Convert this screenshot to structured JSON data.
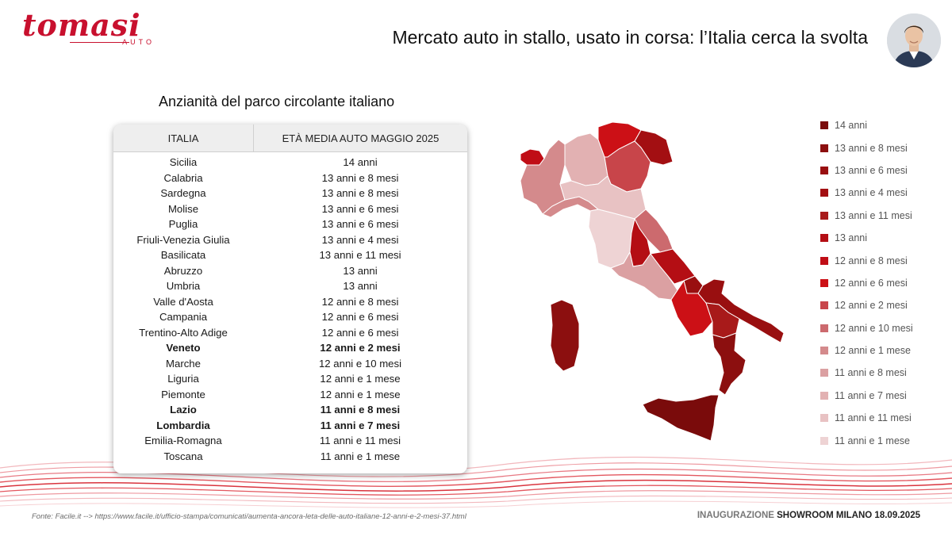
{
  "brand": {
    "name": "tomasi",
    "sub": "AUTO",
    "color": "#c8102e"
  },
  "header": {
    "title": "Mercato auto in stallo, usato in corsa: l’Italia cerca la svolta"
  },
  "section_title": "Anzianità del parco circolante italiano",
  "table": {
    "headers": [
      "ITALIA",
      "ETÀ MEDIA AUTO MAGGIO 2025"
    ],
    "rows": [
      {
        "region": "Sicilia",
        "age": "14 anni",
        "bold": false
      },
      {
        "region": "Calabria",
        "age": "13 anni e 8 mesi",
        "bold": false
      },
      {
        "region": "Sardegna",
        "age": "13 anni e 8 mesi",
        "bold": false
      },
      {
        "region": "Molise",
        "age": "13 anni e 6 mesi",
        "bold": false
      },
      {
        "region": "Puglia",
        "age": "13 anni e 6 mesi",
        "bold": false
      },
      {
        "region": "Friuli-Venezia Giulia",
        "age": "13 anni e 4 mesi",
        "bold": false
      },
      {
        "region": "Basilicata",
        "age": "13 anni e 11 mesi",
        "bold": false
      },
      {
        "region": "Abruzzo",
        "age": "13 anni",
        "bold": false
      },
      {
        "region": "Umbria",
        "age": "13 anni",
        "bold": false
      },
      {
        "region": "Valle d'Aosta",
        "age": "12 anni e 8 mesi",
        "bold": false
      },
      {
        "region": "Campania",
        "age": "12 anni e 6 mesi",
        "bold": false
      },
      {
        "region": "Trentino-Alto Adige",
        "age": "12 anni e 6 mesi",
        "bold": false
      },
      {
        "region": "Veneto",
        "age": "12 anni e 2 mesi",
        "bold": true
      },
      {
        "region": "Marche",
        "age": "12 anni e 10 mesi",
        "bold": false
      },
      {
        "region": "Liguria",
        "age": "12 anni e 1 mese",
        "bold": false
      },
      {
        "region": "Piemonte",
        "age": "12 anni e 1 mese",
        "bold": false
      },
      {
        "region": "Lazio",
        "age": "11 anni e 8 mesi",
        "bold": true
      },
      {
        "region": "Lombardia",
        "age": "11 anni e 7 mesi",
        "bold": true
      },
      {
        "region": "Emilia-Romagna",
        "age": "11 anni e 11 mesi",
        "bold": false
      },
      {
        "region": "Toscana",
        "age": "11 anni e 1 mese",
        "bold": false
      }
    ]
  },
  "legend": [
    {
      "label": "14 anni",
      "color": "#7a0b0b"
    },
    {
      "label": "13 anni e 8 mesi",
      "color": "#8c0f0f"
    },
    {
      "label": "13 anni e 6 mesi",
      "color": "#990f10"
    },
    {
      "label": "13 anni e 4 mesi",
      "color": "#a30f12"
    },
    {
      "label": "13 anni e 11 mesi",
      "color": "#a81a1a"
    },
    {
      "label": "13 anni",
      "color": "#b40e14"
    },
    {
      "label": "12 anni e 8 mesi",
      "color": "#c00d16"
    },
    {
      "label": "12 anni e 6 mesi",
      "color": "#cc1016"
    },
    {
      "label": "12 anni e 2 mesi",
      "color": "#c8454a"
    },
    {
      "label": "12 anni e 10 mesi",
      "color": "#cc6a6e"
    },
    {
      "label": "12 anni e 1 mese",
      "color": "#d48a8c"
    },
    {
      "label": "11 anni e 8 mesi",
      "color": "#dba0a2"
    },
    {
      "label": "11 anni e 7 mesi",
      "color": "#e2b1b2"
    },
    {
      "label": "11 anni e 11 mesi",
      "color": "#e8c2c3"
    },
    {
      "label": "11 anni e 1 mese",
      "color": "#eed3d4"
    }
  ],
  "footer": {
    "source": "Fonte: Facile.it -->  https://www.facile.it/ufficio-stampa/comunicati/aumenta-ancora-leta-delle-auto-italiane-12-anni-e-2-mesi-37.html",
    "event_prefix": "INAUGURAZIONE",
    "event_main": "SHOWROOM MILANO 18.09.2025"
  }
}
